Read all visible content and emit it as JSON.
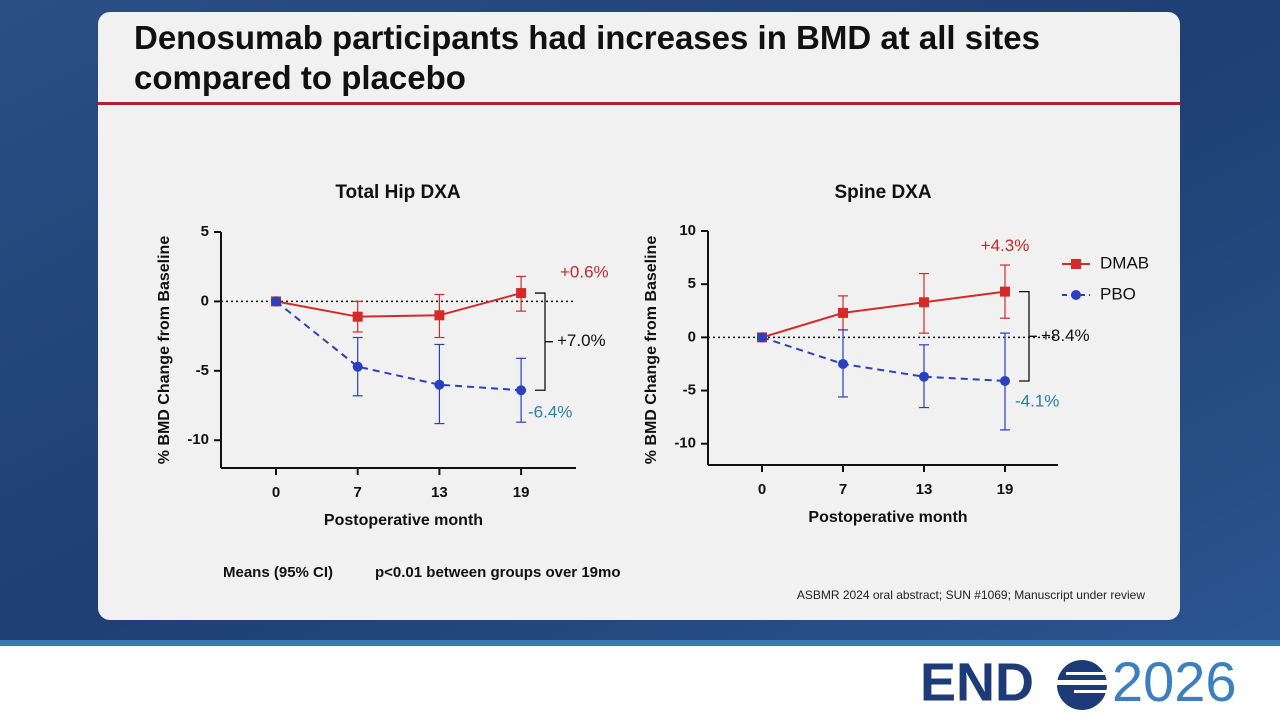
{
  "slide": {
    "title": "Denosumab participants had increases in BMD at all sites compared to placebo",
    "note_left": "Means (95% CI)",
    "note_right": "p<0.01 between groups over 19mo",
    "footnote": "ASBMR 2024 oral abstract; SUN #1069; Manuscript under review",
    "logo_left": "END",
    "logo_right": "2026"
  },
  "chart_data": [
    {
      "type": "line",
      "title": "Total Hip DXA",
      "x_label": "Postoperative month",
      "y_label": "% BMD Change from Baseline",
      "categories": [
        "0",
        "7",
        "13",
        "19"
      ],
      "ylim": [
        -12,
        5
      ],
      "yticks": [
        5,
        0,
        -5,
        -10
      ],
      "hline": 0,
      "annotation": "+7.0%",
      "series": [
        {
          "color": "#d42a2a",
          "label_color": "#c8262b",
          "marker": "square",
          "dash": false,
          "values": [
            0,
            -1.1,
            -1.0,
            0.6
          ],
          "ci_low": [
            0,
            -2.2,
            -2.6,
            -0.7
          ],
          "ci_high": [
            0,
            0,
            0.5,
            1.8
          ],
          "value_labels": [
            null,
            null,
            null,
            "+0.6%"
          ]
        },
        {
          "color": "#2c3fbf",
          "label_color": "#2a7fa8",
          "marker": "circle",
          "dash": true,
          "values": [
            0,
            -4.7,
            -6.0,
            -6.4
          ],
          "ci_low": [
            0,
            -6.8,
            -8.8,
            -8.7
          ],
          "ci_high": [
            0,
            -2.6,
            -3.1,
            -4.1
          ],
          "value_labels": [
            null,
            null,
            null,
            "-6.4%"
          ]
        }
      ]
    },
    {
      "type": "line",
      "title": "Spine DXA",
      "x_label": "Postoperative month",
      "y_label": "% BMD Change from Baseline",
      "categories": [
        "0",
        "7",
        "13",
        "19"
      ],
      "ylim": [
        -12,
        10
      ],
      "yticks": [
        10,
        5,
        0,
        -5,
        -10
      ],
      "hline": 0,
      "annotation": "+8.4%",
      "legend": "right",
      "series": [
        {
          "name": "DMAB",
          "color": "#d42a2a",
          "label_color": "#c8262b",
          "marker": "square",
          "dash": false,
          "values": [
            0,
            2.3,
            3.3,
            4.3
          ],
          "ci_low": [
            0,
            0.7,
            0.4,
            1.8
          ],
          "ci_high": [
            0,
            3.9,
            6.0,
            6.8
          ],
          "value_labels": [
            null,
            null,
            null,
            "+4.3%"
          ]
        },
        {
          "name": "PBO",
          "color": "#2c3fbf",
          "label_color": "#2a7fa8",
          "marker": "circle",
          "dash": true,
          "values": [
            0,
            -2.5,
            -3.7,
            -4.1
          ],
          "ci_low": [
            0,
            -5.6,
            -6.6,
            -8.7
          ],
          "ci_high": [
            0,
            0.7,
            -0.7,
            0.4
          ],
          "value_labels": [
            null,
            null,
            null,
            "-4.1%"
          ]
        }
      ]
    }
  ]
}
